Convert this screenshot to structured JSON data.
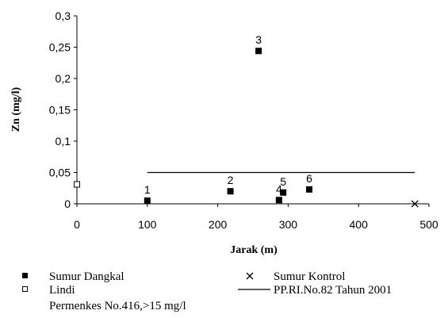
{
  "chart_data": {
    "type": "scatter",
    "title": "",
    "xlabel": "Jarak (m)",
    "ylabel": "Zn (mg/l)",
    "xlim": [
      0,
      500
    ],
    "ylim": [
      0,
      0.3
    ],
    "x_ticks": [
      "0",
      "100",
      "200",
      "300",
      "400",
      "500"
    ],
    "y_ticks": [
      "0",
      "0,05",
      "0,1",
      "0,15",
      "0,2",
      "0,25",
      "0,3"
    ],
    "grid": false,
    "legend_position": "bottom",
    "series": [
      {
        "name": "Sumur Dangkal",
        "marker": "filled-square",
        "points": [
          {
            "label": "1",
            "x": 100,
            "y": 0.005
          },
          {
            "label": "2",
            "x": 218,
            "y": 0.02
          },
          {
            "label": "3",
            "x": 258,
            "y": 0.244
          },
          {
            "label": "4",
            "x": 287,
            "y": 0.006
          },
          {
            "label": "5",
            "x": 293,
            "y": 0.018
          },
          {
            "label": "6",
            "x": 330,
            "y": 0.023
          }
        ]
      },
      {
        "name": "Sumur Kontrol",
        "marker": "x",
        "points": [
          {
            "label": "",
            "x": 480,
            "y": 0.0
          }
        ]
      },
      {
        "name": "Lindi",
        "marker": "open-square",
        "points": [
          {
            "label": "",
            "x": 0,
            "y": 0.031
          }
        ]
      },
      {
        "name": "PP.RI.No.82 Tahun 2001",
        "marker": "line",
        "line": {
          "x": [
            100,
            480
          ],
          "y": [
            0.05,
            0.05
          ]
        }
      }
    ],
    "legend_note": "Permenkes No.416,>15 mg/l",
    "colors": {
      "marks": "#000000",
      "background": "#ffffff"
    }
  }
}
